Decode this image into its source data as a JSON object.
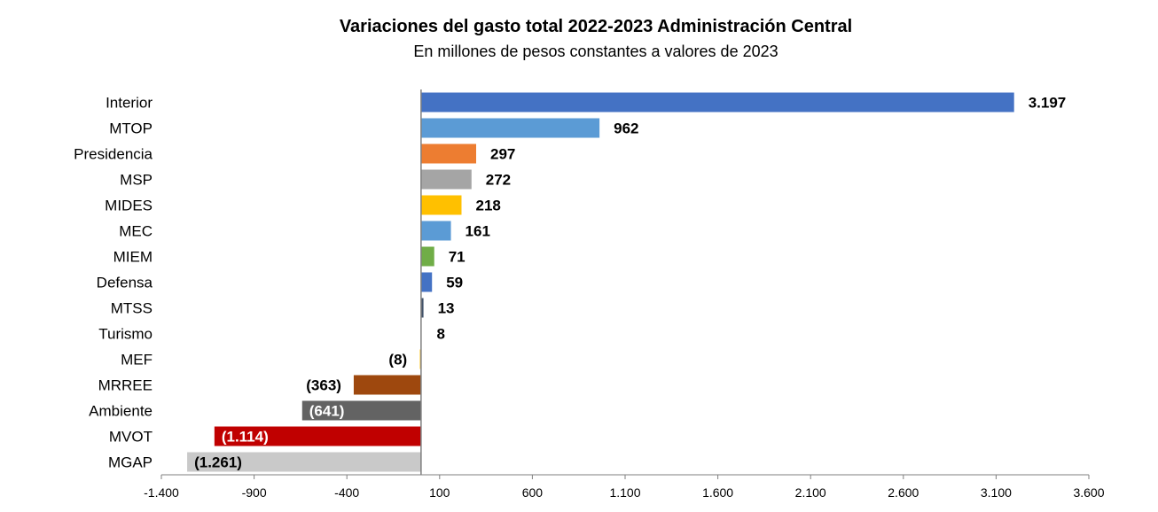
{
  "chart_data": {
    "type": "bar",
    "orientation": "horizontal",
    "title": "Variaciones del gasto total 2022-2023 Administración Central",
    "subtitle": "En millones de pesos constantes a valores de 2023",
    "categories": [
      "Interior",
      "MTOP",
      "Presidencia",
      "MSP",
      "MIDES",
      "MEC",
      "MIEM",
      "Defensa",
      "MTSS",
      "Turismo",
      "MEF",
      "MRREE",
      "Ambiente",
      "MVOT",
      "MGAP"
    ],
    "values": [
      3197,
      962,
      297,
      272,
      218,
      161,
      71,
      59,
      13,
      8,
      -8,
      -363,
      -641,
      -1114,
      -1261
    ],
    "value_labels": [
      "3.197",
      "962",
      "297",
      "272",
      "218",
      "161",
      "71",
      "59",
      "13",
      "8",
      "(8)",
      "(363)",
      "(641)",
      "(1.114)",
      "(1.261)"
    ],
    "colors": [
      "#4472C4",
      "#5B9BD5",
      "#ED7D31",
      "#A5A5A5",
      "#FFC000",
      "#5B9BD5",
      "#70AD47",
      "#4472C4",
      "#44546A",
      "#FFFFFF",
      "#FFD966",
      "#9E480E",
      "#636363",
      "#C00000",
      "#C9C9C9"
    ],
    "label_inside": [
      false,
      false,
      false,
      false,
      false,
      false,
      false,
      false,
      false,
      false,
      false,
      false,
      true,
      true,
      true
    ],
    "label_colors": [
      "#000000",
      "#000000",
      "#000000",
      "#000000",
      "#000000",
      "#000000",
      "#000000",
      "#000000",
      "#000000",
      "#000000",
      "#000000",
      "#000000",
      "#FFFFFF",
      "#FFFFFF",
      "#000000"
    ],
    "x_ticks": [
      -1400,
      -900,
      -400,
      100,
      600,
      1100,
      1600,
      2100,
      2600,
      3100,
      3600
    ],
    "x_tick_labels": [
      "-1.400",
      "-900",
      "-400",
      "100",
      "600",
      "1.100",
      "1.600",
      "2.100",
      "2.600",
      "3.100",
      "3.600"
    ],
    "xlim": [
      -1400,
      3600
    ],
    "grid": false,
    "legend": "none"
  }
}
